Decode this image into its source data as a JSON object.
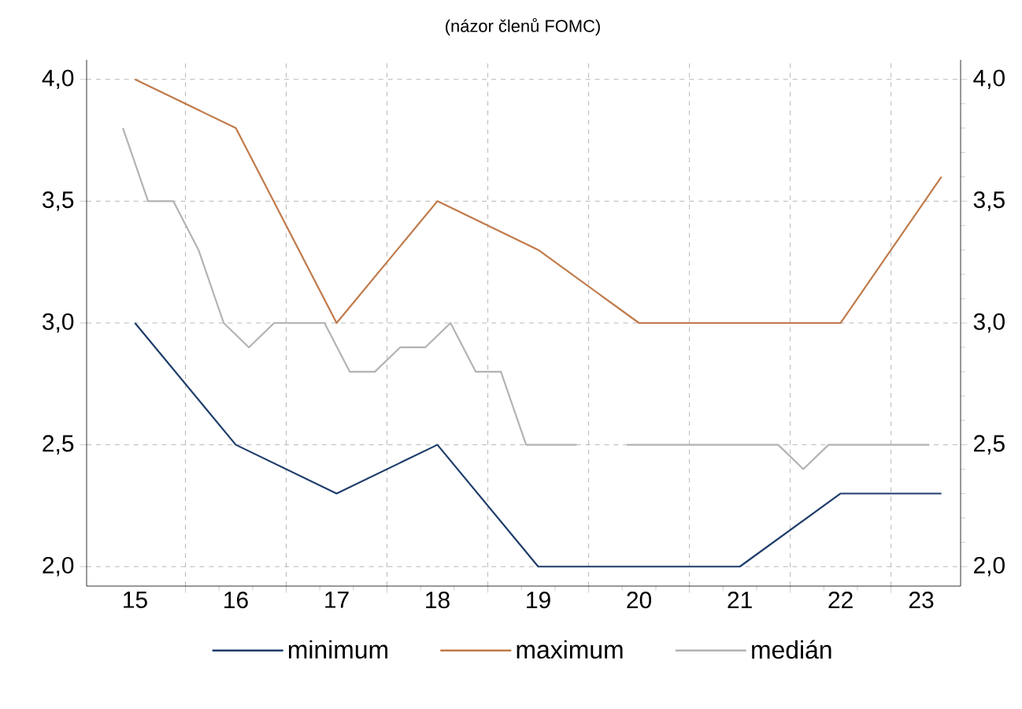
{
  "chart_data": {
    "type": "line",
    "subtitle": "(názor členů FOMC)",
    "xlim": [
      14.52,
      23.19
    ],
    "ylim": [
      1.92,
      4.08
    ],
    "y2lim": [
      1.92,
      4.08
    ],
    "xticks": [
      {
        "value": 15,
        "label": "15"
      },
      {
        "value": 16,
        "label": "16"
      },
      {
        "value": 17,
        "label": "17"
      },
      {
        "value": 18,
        "label": "18"
      },
      {
        "value": 19,
        "label": "19"
      },
      {
        "value": 20,
        "label": "20"
      },
      {
        "value": 21,
        "label": "21"
      },
      {
        "value": 22,
        "label": "22"
      },
      {
        "value": 22.8,
        "label": "23"
      },
      {
        "value": 15.5,
        "label": null
      },
      {
        "value": 16.5,
        "label": null
      },
      {
        "value": 17.5,
        "label": null
      },
      {
        "value": 18.5,
        "label": null
      },
      {
        "value": 19.5,
        "label": null
      },
      {
        "value": 20.5,
        "label": null
      },
      {
        "value": 21.5,
        "label": null
      },
      {
        "value": 22.5,
        "label": null
      }
    ],
    "yticks": [
      {
        "value": 2.0,
        "label": "2,0"
      },
      {
        "value": 2.5,
        "label": "2,5"
      },
      {
        "value": 3.0,
        "label": "3,0"
      },
      {
        "value": 3.5,
        "label": "3,5"
      },
      {
        "value": 4.0,
        "label": "4,0"
      }
    ],
    "y2ticks": [
      {
        "value": 2.0,
        "label": "2,0"
      },
      {
        "value": 2.5,
        "label": "2,5"
      },
      {
        "value": 3.0,
        "label": "3,0"
      },
      {
        "value": 3.5,
        "label": "3,5"
      },
      {
        "value": 4.0,
        "label": "4,0"
      }
    ],
    "grid": true,
    "legend": "bottom",
    "marker": "none",
    "line_style": "solid",
    "series": [
      {
        "name": "minimum",
        "color": "#1f3d6b",
        "x": [
          15,
          16,
          17,
          18,
          19,
          20,
          21,
          22,
          23
        ],
        "values": [
          3.0,
          2.5,
          2.3,
          2.5,
          2.0,
          2.0,
          2.0,
          2.3,
          2.3
        ]
      },
      {
        "name": "maximum",
        "color": "#c07a4a",
        "x": [
          15,
          16,
          17,
          18,
          19,
          20,
          21,
          22,
          23
        ],
        "values": [
          4.0,
          3.8,
          3.0,
          3.5,
          3.3,
          3.0,
          3.0,
          3.0,
          3.6
        ]
      },
      {
        "name": "medián",
        "color": "#b3b3b3",
        "x": [
          14.88,
          15.13,
          15.38,
          15.63,
          15.88,
          16.13,
          16.38,
          16.63,
          16.88,
          17.13,
          17.38,
          17.63,
          17.88,
          18.13,
          18.38,
          18.63,
          18.88,
          19.13,
          19.38,
          19.63,
          19.88,
          20.13,
          20.38,
          20.63,
          20.88,
          21.13,
          21.38,
          21.63,
          21.88,
          22.13,
          22.38,
          22.63,
          22.88
        ],
        "values": [
          3.8,
          3.5,
          3.5,
          3.3,
          3.0,
          2.9,
          3.0,
          3.0,
          3.0,
          2.8,
          2.8,
          2.9,
          2.9,
          3.0,
          2.8,
          2.8,
          2.5,
          2.5,
          2.5,
          null,
          2.5,
          2.5,
          2.5,
          2.5,
          2.5,
          2.5,
          2.5,
          2.4,
          2.5,
          2.5,
          2.5,
          2.5,
          2.5
        ]
      }
    ]
  }
}
